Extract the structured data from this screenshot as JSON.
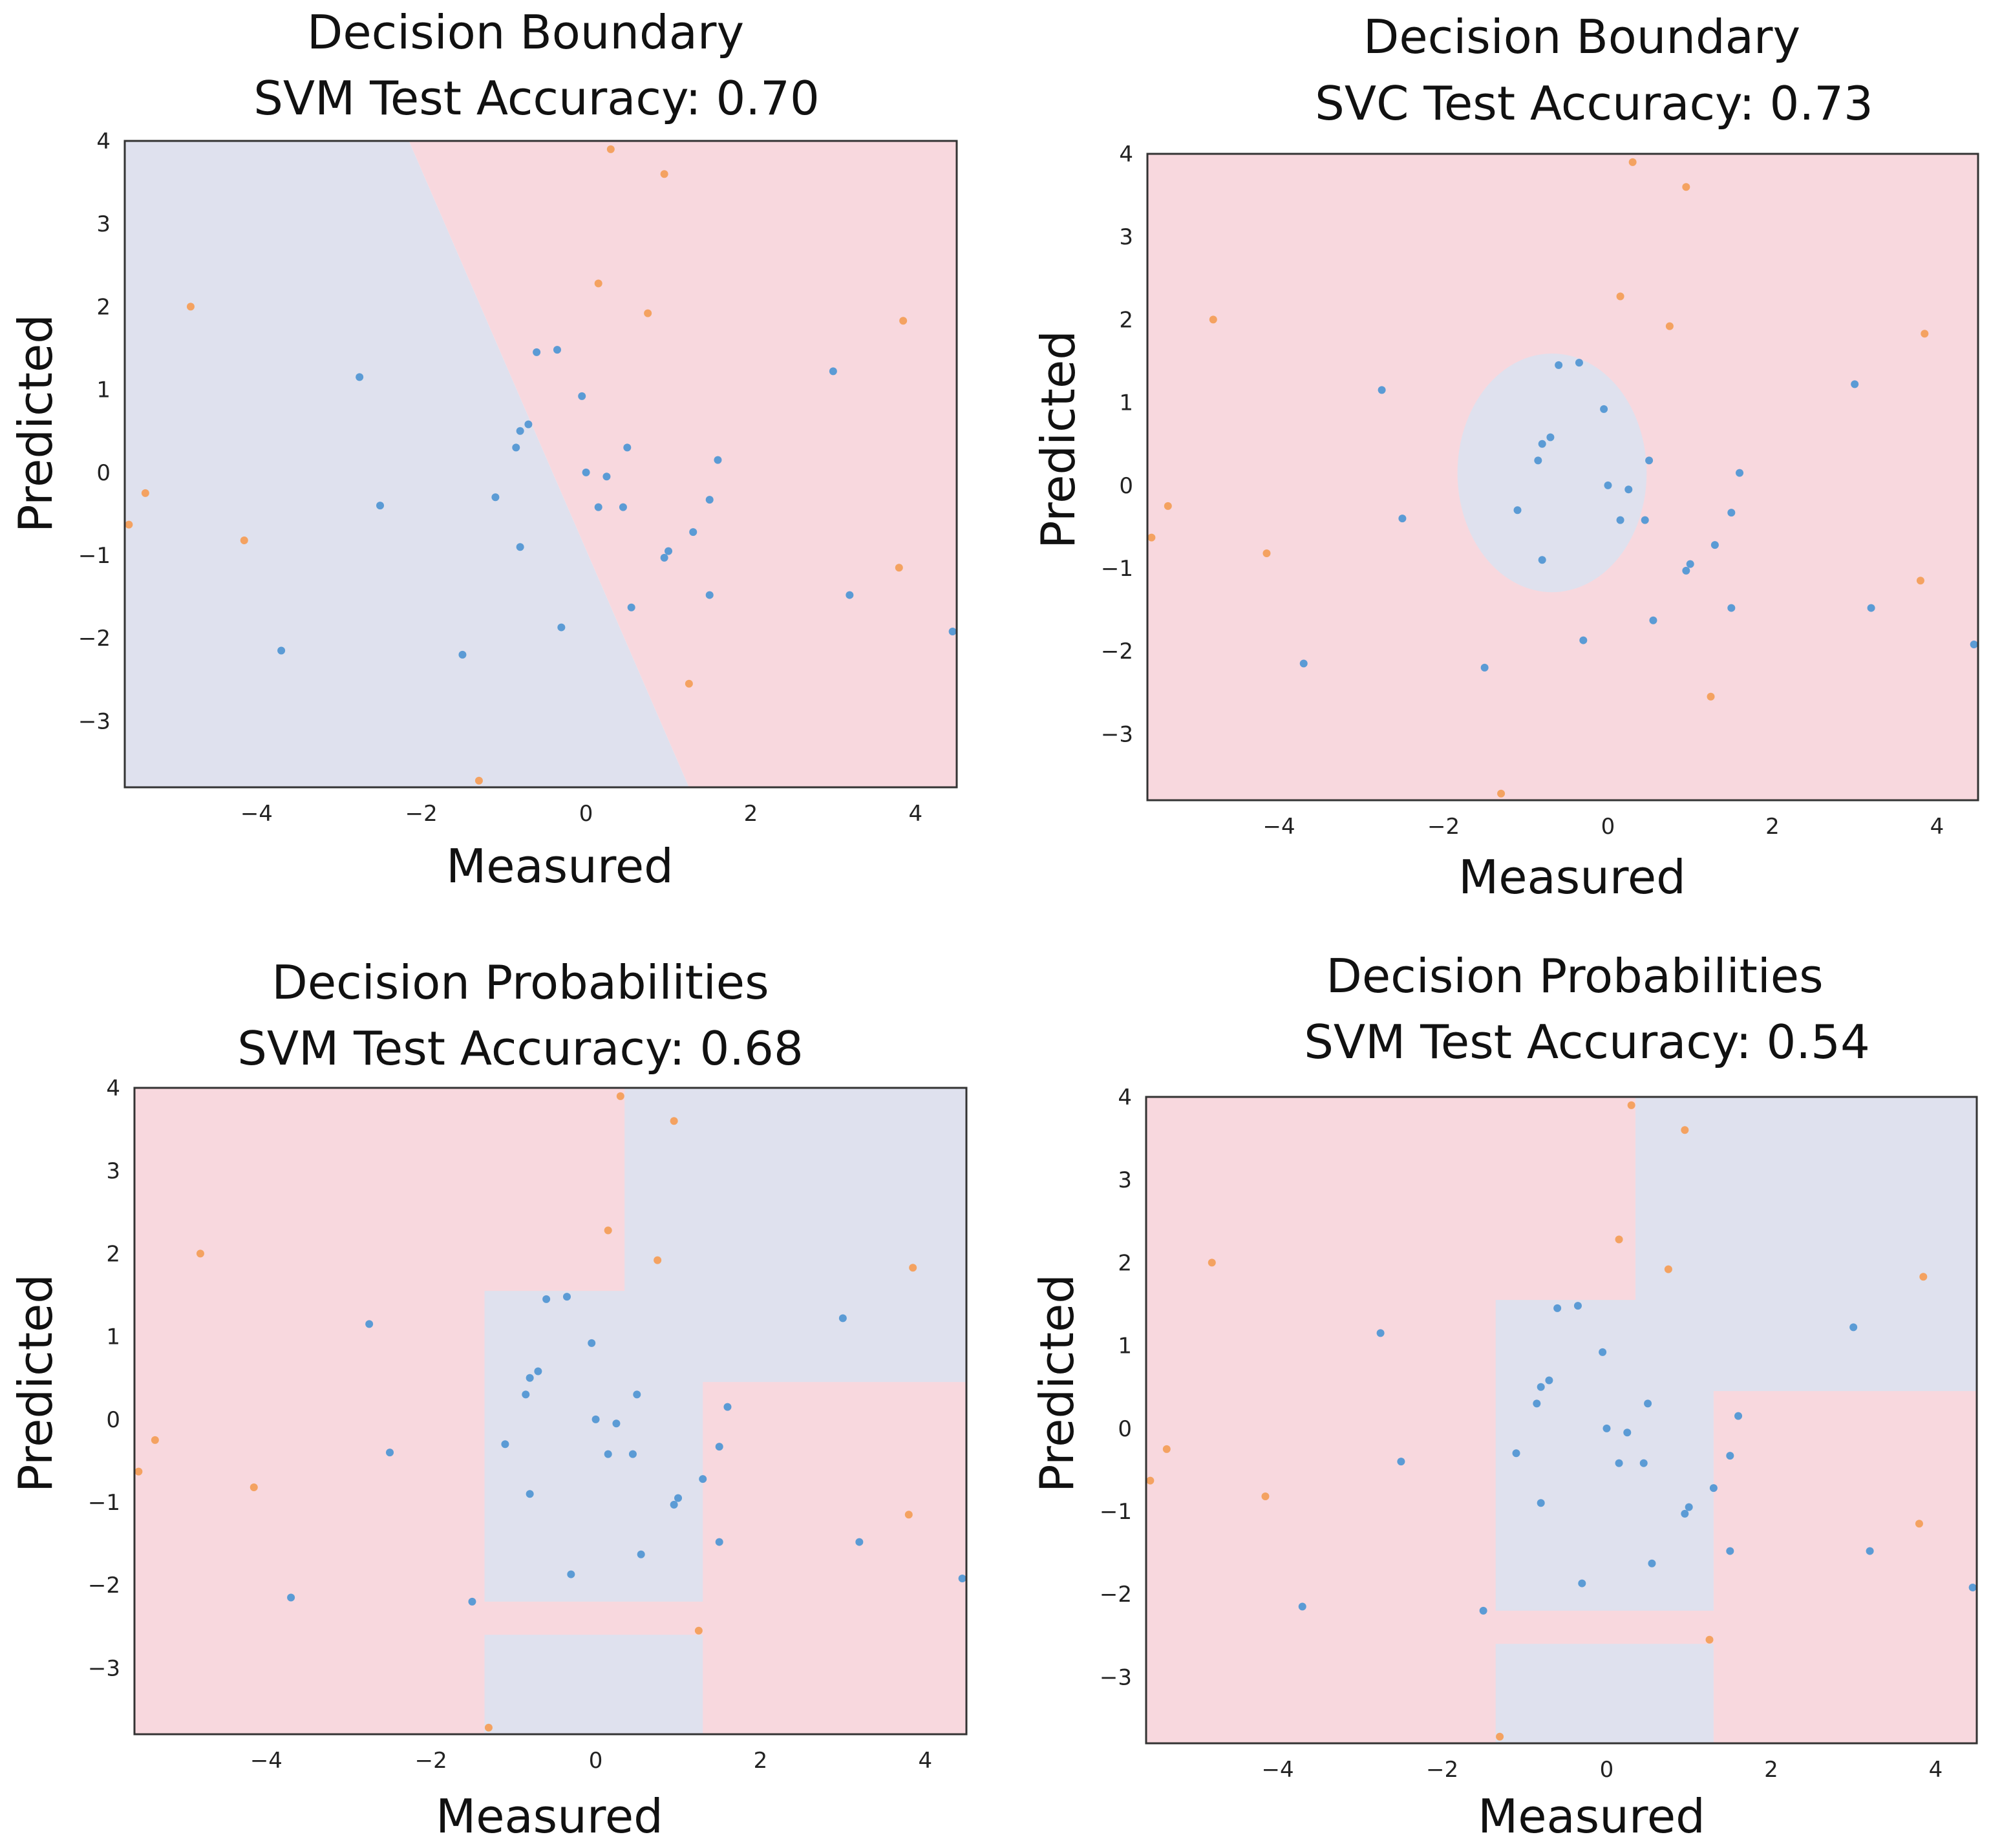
{
  "colors": {
    "region_blue": "#dfe1ee",
    "region_pink": "#f8d8de",
    "point_blue": "#5b9bd5",
    "point_orange": "#f4a261",
    "frame": "#333333"
  },
  "chart_data": [
    {
      "type": "scatter",
      "title_line1": "Decision Boundary",
      "title_line2": "SVM Test Accuracy: 0.70",
      "xlabel": "Measured",
      "ylabel": "Predicted",
      "xlim": [
        -5.6,
        4.5
      ],
      "ylim": [
        -3.8,
        4.0
      ],
      "xticks": [
        -4,
        -2,
        0,
        2,
        4
      ],
      "xtick_labels": [
        "−4",
        "−2",
        "0",
        "2",
        "4"
      ],
      "yticks": [
        4,
        3,
        2,
        1,
        0,
        -1,
        -2,
        -3
      ],
      "ytick_labels": [
        "4",
        "3",
        "2",
        "1",
        "0",
        "−1",
        "−2",
        "−3"
      ],
      "grid": false,
      "legend": "none",
      "regions": [
        {
          "class": "blue",
          "shape": "polygon",
          "points": [
            [
              -5.6,
              4.0
            ],
            [
              -2.15,
              4.0
            ],
            [
              1.25,
              -3.8
            ],
            [
              -5.6,
              -3.8
            ]
          ]
        },
        {
          "class": "pink",
          "shape": "polygon",
          "points": [
            [
              -2.15,
              4.0
            ],
            [
              4.5,
              4.0
            ],
            [
              4.5,
              -3.8
            ],
            [
              1.25,
              -3.8
            ]
          ]
        }
      ]
    },
    {
      "type": "scatter",
      "title_line1": "Decision Boundary",
      "title_line2": "SVC Test Accuracy: 0.73",
      "xlabel": "Measured",
      "ylabel": "Predicted",
      "xlim": [
        -5.6,
        4.5
      ],
      "ylim": [
        -3.8,
        4.0
      ],
      "xticks": [
        -4,
        -2,
        0,
        2,
        4
      ],
      "xtick_labels": [
        "−4",
        "−2",
        "0",
        "2",
        "4"
      ],
      "yticks": [
        4,
        3,
        2,
        1,
        0,
        -1,
        -2,
        -3
      ],
      "ytick_labels": [
        "4",
        "3",
        "2",
        "1",
        "0",
        "−1",
        "−2",
        "−3"
      ],
      "grid": false,
      "legend": "none",
      "regions": [
        {
          "class": "pink",
          "shape": "rect",
          "x": [
            -5.6,
            4.5
          ],
          "y": [
            -3.8,
            4.0
          ]
        },
        {
          "class": "blue",
          "shape": "ellipse",
          "cx": -0.68,
          "cy": 0.15,
          "rx": 1.15,
          "ry": 1.44
        }
      ]
    },
    {
      "type": "scatter",
      "title_line1": "Decision Probabilities",
      "title_line2": "SVM Test Accuracy: 0.68",
      "xlabel": "Measured",
      "ylabel": "Predicted",
      "xlim": [
        -5.6,
        4.5
      ],
      "ylim": [
        -3.8,
        4.0
      ],
      "xticks": [
        -4,
        -2,
        0,
        2,
        4
      ],
      "xtick_labels": [
        "−4",
        "−2",
        "0",
        "2",
        "4"
      ],
      "yticks": [
        4,
        3,
        2,
        1,
        0,
        -1,
        -2,
        -3
      ],
      "ytick_labels": [
        "4",
        "3",
        "2",
        "1",
        "0",
        "−1",
        "−2",
        "−3"
      ],
      "grid": false,
      "legend": "none",
      "regions": [
        {
          "class": "pink",
          "shape": "rect",
          "x": [
            -5.6,
            4.5
          ],
          "y": [
            -3.8,
            4.0
          ]
        },
        {
          "class": "blue",
          "shape": "rect",
          "x": [
            0.35,
            4.5
          ],
          "y": [
            0.45,
            4.0
          ]
        },
        {
          "class": "blue",
          "shape": "rect",
          "x": [
            -1.35,
            1.3
          ],
          "y": [
            -2.2,
            1.55
          ]
        },
        {
          "class": "blue",
          "shape": "rect",
          "x": [
            -1.35,
            1.3
          ],
          "y": [
            -3.8,
            -2.6
          ]
        }
      ]
    },
    {
      "type": "scatter",
      "title_line1": "Decision Probabilities",
      "title_line2": "SVM Test Accuracy: 0.54",
      "xlabel": "Measured",
      "ylabel": "Predicted",
      "xlim": [
        -5.6,
        4.5
      ],
      "ylim": [
        -3.8,
        4.0
      ],
      "xticks": [
        -4,
        -2,
        0,
        2,
        4
      ],
      "xtick_labels": [
        "−4",
        "−2",
        "0",
        "2",
        "4"
      ],
      "yticks": [
        4,
        3,
        2,
        1,
        0,
        -1,
        -2,
        -3
      ],
      "ytick_labels": [
        "4",
        "3",
        "2",
        "1",
        "0",
        "−1",
        "−2",
        "−3"
      ],
      "grid": false,
      "legend": "none",
      "regions": [
        {
          "class": "pink",
          "shape": "rect",
          "x": [
            -5.6,
            4.5
          ],
          "y": [
            -3.8,
            4.0
          ]
        },
        {
          "class": "blue",
          "shape": "rect",
          "x": [
            0.35,
            4.5
          ],
          "y": [
            0.45,
            4.0
          ]
        },
        {
          "class": "blue",
          "shape": "rect",
          "x": [
            -1.35,
            1.3
          ],
          "y": [
            -2.2,
            1.55
          ]
        },
        {
          "class": "blue",
          "shape": "rect",
          "x": [
            -1.35,
            1.3
          ],
          "y": [
            -3.8,
            -2.6
          ]
        }
      ]
    }
  ],
  "points": {
    "blue": [
      [
        -2.75,
        1.15
      ],
      [
        -0.6,
        1.45
      ],
      [
        -0.35,
        1.48
      ],
      [
        -0.05,
        0.92
      ],
      [
        -0.7,
        0.58
      ],
      [
        -0.8,
        0.5
      ],
      [
        -0.85,
        0.3
      ],
      [
        0.5,
        0.3
      ],
      [
        1.6,
        0.15
      ],
      [
        0.0,
        0.0
      ],
      [
        0.25,
        -0.05
      ],
      [
        -1.1,
        -0.3
      ],
      [
        1.5,
        -0.33
      ],
      [
        -2.5,
        -0.4
      ],
      [
        0.15,
        -0.42
      ],
      [
        0.45,
        -0.42
      ],
      [
        1.3,
        -0.72
      ],
      [
        -0.8,
        -0.9
      ],
      [
        1.0,
        -0.95
      ],
      [
        0.95,
        -1.03
      ],
      [
        3.2,
        -1.48
      ],
      [
        1.5,
        -1.48
      ],
      [
        0.55,
        -1.63
      ],
      [
        -0.3,
        -1.87
      ],
      [
        4.45,
        -1.92
      ],
      [
        -3.7,
        -2.15
      ],
      [
        -1.5,
        -2.2
      ],
      [
        3.0,
        1.22
      ]
    ],
    "orange": [
      [
        0.3,
        3.9
      ],
      [
        0.95,
        3.6
      ],
      [
        0.15,
        2.28
      ],
      [
        -4.8,
        2.0
      ],
      [
        0.75,
        1.92
      ],
      [
        3.85,
        1.83
      ],
      [
        -5.35,
        -0.25
      ],
      [
        -5.55,
        -0.63
      ],
      [
        -4.15,
        -0.82
      ],
      [
        3.8,
        -1.15
      ],
      [
        1.25,
        -2.55
      ],
      [
        -1.3,
        -3.72
      ]
    ]
  }
}
